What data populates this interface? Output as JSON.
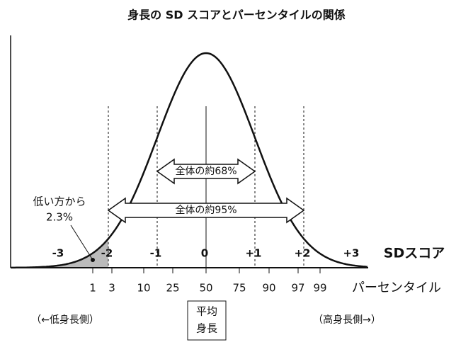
{
  "title": "身長の SD スコアとパーセンタイルの関係",
  "sd_scores": [
    "-3",
    "-2",
    "-1",
    "0",
    "+1",
    "+2",
    "+3"
  ],
  "sd_axis_label": "SDスコア",
  "percentiles": [
    "1",
    "3",
    "10",
    "25",
    "50",
    "75",
    "90",
    "97",
    "99"
  ],
  "percentile_axis_label": "パーセンタイル",
  "arrows": [
    "全体の約68%",
    "全体の約95%"
  ],
  "annotation": {
    "line1": "低い方から",
    "line2": "2.3%"
  },
  "left_note": "（←低身長側）",
  "right_note": "（高身長側→）",
  "mean_box": {
    "line1": "平均",
    "line2": "身長"
  }
}
